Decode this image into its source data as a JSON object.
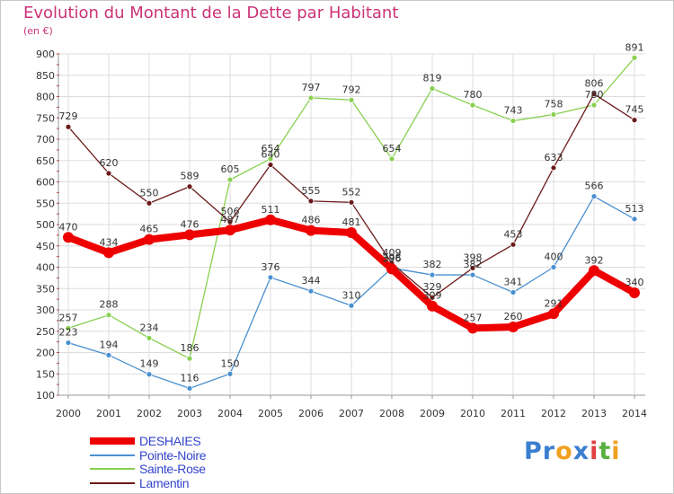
{
  "title": "Evolution du Montant de la Dette par Habitant",
  "subtitle": "(en €)",
  "logo": {
    "letters": [
      "P",
      "r",
      "o",
      "x",
      "i",
      "t",
      "i"
    ],
    "colors": [
      "#3b7fd0",
      "#3b7fd0",
      "#f0a020",
      "#3b7fd0",
      "#e04040",
      "#58b040",
      "#f0a020"
    ]
  },
  "chart_data": {
    "type": "line",
    "x": [
      2000,
      2001,
      2002,
      2003,
      2004,
      2005,
      2006,
      2007,
      2008,
      2009,
      2010,
      2011,
      2012,
      2013,
      2014
    ],
    "ylim": [
      100,
      900
    ],
    "yticks": [
      100,
      150,
      200,
      250,
      300,
      350,
      400,
      450,
      500,
      550,
      600,
      650,
      700,
      750,
      800,
      850,
      900
    ],
    "grid": true,
    "legend_position": "bottom-left",
    "series": [
      {
        "name": "DESHAIES",
        "color": "#ee0000",
        "values": [
          470,
          434,
          465,
          476,
          487,
          511,
          486,
          481,
          396,
          309,
          257,
          260,
          291,
          392,
          340
        ]
      },
      {
        "name": "Pointe-Noire",
        "color": "#4a90d0",
        "values": [
          223,
          194,
          149,
          116,
          150,
          376,
          344,
          310,
          398,
          382,
          382,
          341,
          400,
          566,
          513
        ]
      },
      {
        "name": "Sainte-Rose",
        "color": "#88d050",
        "values": [
          257,
          288,
          234,
          186,
          605,
          654,
          797,
          792,
          654,
          819,
          780,
          743,
          758,
          780,
          891
        ]
      },
      {
        "name": "Lamentin",
        "color": "#6b1a1a",
        "values": [
          729,
          620,
          550,
          589,
          506,
          640,
          555,
          552,
          409,
          329,
          398,
          453,
          633,
          806,
          745
        ]
      }
    ]
  }
}
